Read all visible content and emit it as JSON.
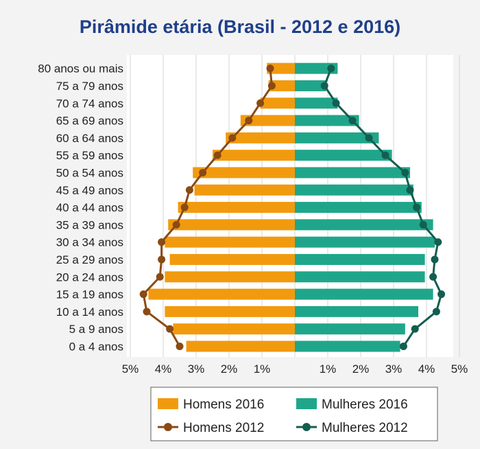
{
  "chart_data": {
    "type": "bar",
    "title": "Pirâmide etária (Brasil - 2012 e 2016)",
    "orientation": "horizontal-population-pyramid",
    "categories": [
      "0 a 4 anos",
      "5 a 9 anos",
      "10 a 14 anos",
      "15 a 19 anos",
      "20 a 24 anos",
      "25 a 29 anos",
      "30 a 34 anos",
      "35 a 39 anos",
      "40 a 44 anos",
      "45 a 49 anos",
      "50 a 54 anos",
      "55 a 59 anos",
      "60 a 64 anos",
      "65 a 69 anos",
      "70 a 74 anos",
      "75 a 79 anos",
      "80 anos ou mais"
    ],
    "x_ticks": [
      "5%",
      "4%",
      "3%",
      "2%",
      "1%",
      "",
      "1%",
      "2%",
      "3%",
      "4%",
      "5%"
    ],
    "xlim": [
      -5,
      5
    ],
    "grid": true,
    "legend_position": "bottom",
    "series": [
      {
        "name": "Homens 2016",
        "kind": "bar",
        "side": "left",
        "color": "#f29a0e",
        "values": [
          3.3,
          3.7,
          3.95,
          4.45,
          3.95,
          3.8,
          3.95,
          3.85,
          3.55,
          3.05,
          3.1,
          2.5,
          2.1,
          1.65,
          1.05,
          0.8,
          0.85
        ]
      },
      {
        "name": "Mulheres 2016",
        "kind": "bar",
        "side": "right",
        "color": "#1fa68a",
        "values": [
          3.2,
          3.35,
          3.75,
          4.2,
          3.95,
          3.95,
          4.25,
          4.2,
          3.85,
          3.6,
          3.5,
          2.95,
          2.55,
          1.95,
          1.3,
          0.95,
          1.3
        ]
      },
      {
        "name": "Homens 2012",
        "kind": "line",
        "side": "left",
        "color": "#8a4a14",
        "values": [
          3.5,
          3.8,
          4.5,
          4.6,
          4.1,
          4.05,
          4.05,
          3.6,
          3.35,
          3.2,
          2.8,
          2.35,
          1.9,
          1.4,
          1.05,
          0.7,
          0.75
        ]
      },
      {
        "name": "Mulheres 2012",
        "kind": "line",
        "side": "right",
        "color": "#135e50",
        "values": [
          3.3,
          3.65,
          4.3,
          4.45,
          4.2,
          4.25,
          4.35,
          3.9,
          3.7,
          3.5,
          3.35,
          2.75,
          2.25,
          1.75,
          1.25,
          0.9,
          1.1
        ]
      }
    ]
  }
}
